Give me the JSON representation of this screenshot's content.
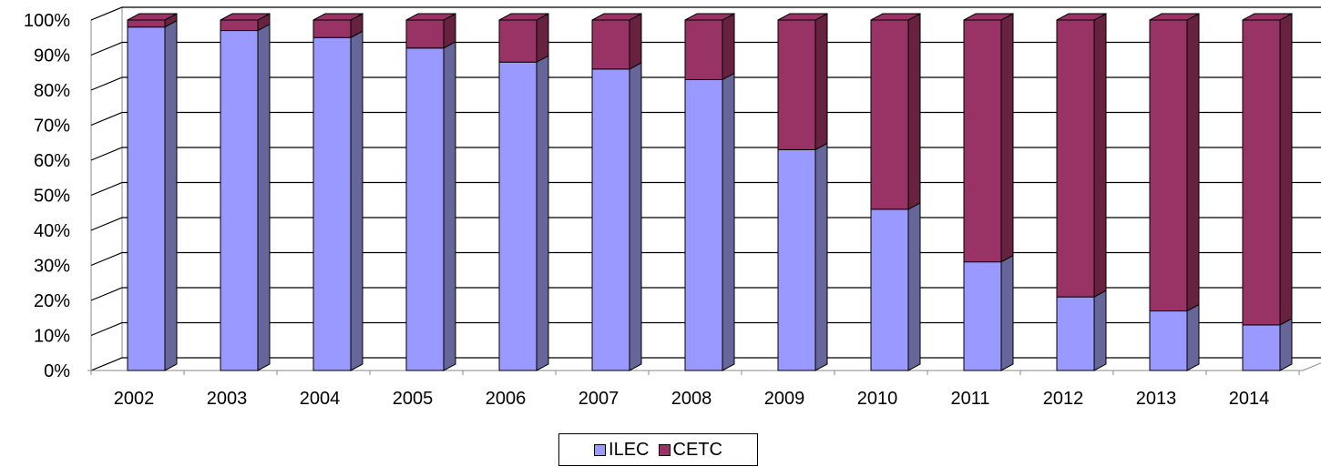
{
  "chart_data": {
    "type": "bar",
    "stacked": true,
    "percent": true,
    "three_d": true,
    "categories": [
      "2002",
      "2003",
      "2004",
      "2005",
      "2006",
      "2007",
      "2008",
      "2009",
      "2010",
      "2011",
      "2012",
      "2013",
      "2014"
    ],
    "series": [
      {
        "name": "ILEC",
        "color": "#9999FF",
        "side_color": "#666699",
        "values": [
          98,
          97,
          95,
          92,
          88,
          86,
          83,
          63,
          46,
          31,
          21,
          17,
          13
        ]
      },
      {
        "name": "CETC",
        "color": "#993366",
        "side_color": "#66223F",
        "values": [
          2,
          3,
          5,
          8,
          12,
          14,
          17,
          37,
          54,
          69,
          79,
          83,
          87
        ]
      }
    ],
    "y_ticks": [
      "0%",
      "10%",
      "20%",
      "30%",
      "40%",
      "50%",
      "60%",
      "70%",
      "80%",
      "90%",
      "100%"
    ],
    "ylim": [
      0,
      100
    ],
    "grid": true,
    "legend_position": "bottom"
  }
}
